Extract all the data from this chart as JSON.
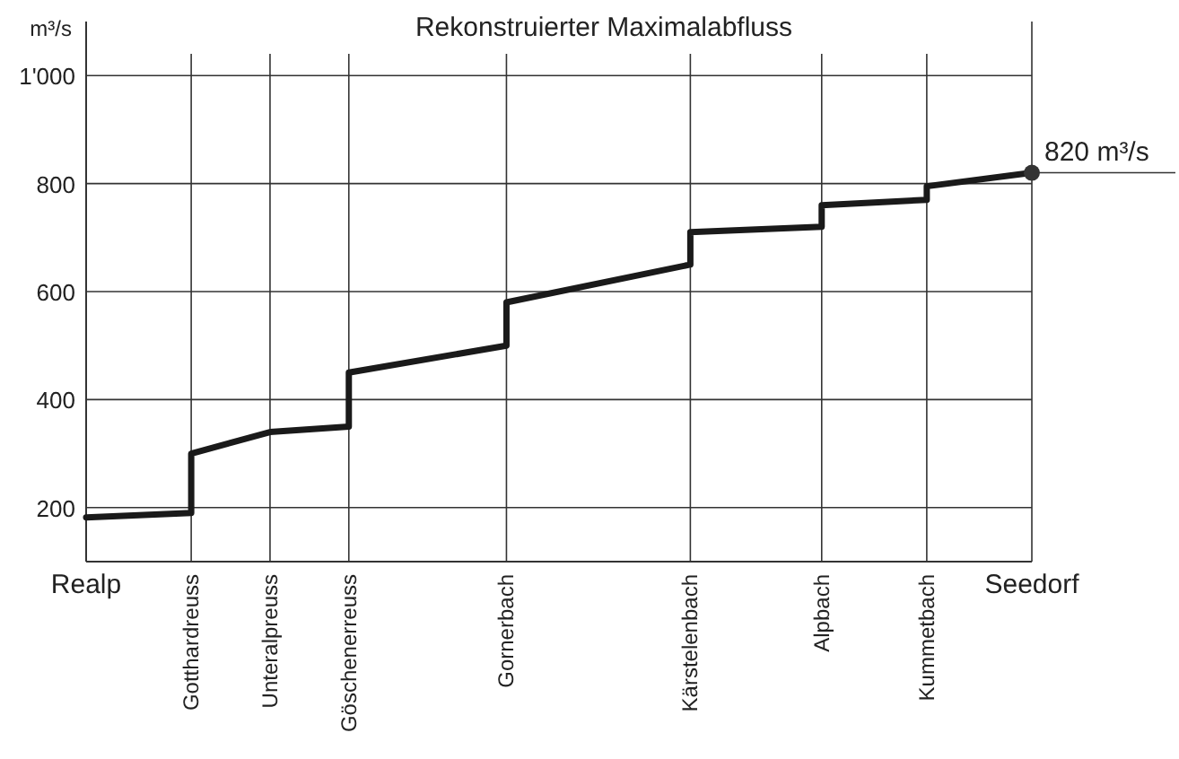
{
  "chart_data": {
    "type": "line",
    "title": "Rekonstruierter Maximalabfluss",
    "ylabel": "m³/s",
    "categories": [
      "Realp",
      null,
      null,
      null,
      "Gotthardreuss",
      null,
      null,
      "Unteralpreuss",
      null,
      null,
      "Göschenerreuss",
      null,
      null,
      null,
      null,
      null,
      "Gornerbach",
      null,
      null,
      null,
      null,
      null,
      null,
      "Kärstelenbach",
      null,
      null,
      null,
      null,
      "Alpbach",
      null,
      null,
      null,
      "Kummetbach",
      null,
      null,
      null,
      "Seedorf"
    ],
    "series": [
      {
        "color": "#1a1a1a",
        "x": [
          "Realp",
          "Gotthardreuss",
          "Gotthardreuss",
          "Unteralpreuss",
          "Göschenerreuss",
          "Göschenerreuss",
          "Gornerbach",
          "Gornerbach",
          "Kärstelenbach",
          "Kärstelenbach",
          "Alpbach",
          "Alpbach",
          "Kummetbach",
          "Kummetbach",
          "Seedorf"
        ],
        "values": [
          182,
          190,
          300,
          340,
          350,
          450,
          500,
          580,
          650,
          710,
          720,
          760,
          770,
          795,
          820
        ]
      }
    ],
    "ylim": [
      100,
      1100
    ],
    "yticks": [
      200,
      400,
      600,
      800,
      {
        "value": 1000,
        "label": "1'000"
      }
    ],
    "grid": true,
    "marker": "none",
    "line_style": "solid",
    "annotations": [
      {
        "text": "820 m³/s",
        "x": "Seedorf",
        "y": 820
      }
    ]
  }
}
